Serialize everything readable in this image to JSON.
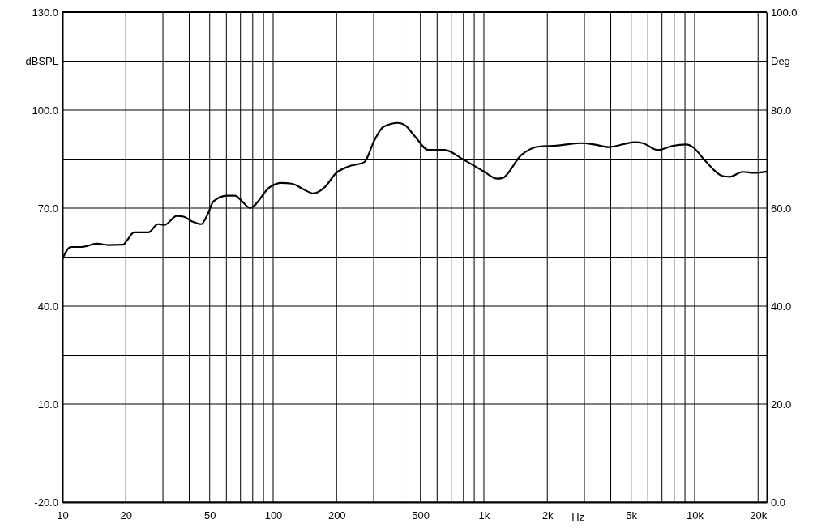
{
  "chart_data": {
    "type": "line",
    "xlabel": "Hz",
    "ylabel": "dBSPL",
    "y2label": "Deg",
    "log": "x",
    "grid": true,
    "x": [
      10,
      10.96,
      12.3,
      14.6,
      16.5,
      19.4,
      20.3,
      21.9,
      25.6,
      28.4,
      30.6,
      34.9,
      37.6,
      41.1,
      45.6,
      49.1,
      52.1,
      60.4,
      65.9,
      71.2,
      77.6,
      96.8,
      108.9,
      122.6,
      138,
      155.6,
      174.9,
      199.6,
      227,
      271,
      302,
      334,
      392,
      424,
      470,
      546,
      650,
      797,
      1000,
      1156,
      1225,
      1503,
      1846,
      2198,
      2876,
      3332,
      3915,
      5195,
      5678,
      6686,
      7877,
      9114,
      9806,
      11220,
      13610,
      14650,
      16950,
      19120,
      22000
    ],
    "series": [
      {
        "color": "#000000",
        "values": [
          54.4,
          58.1,
          58.1,
          59.1,
          58.7,
          58.8,
          60.2,
          62.6,
          62.6,
          65.1,
          64.9,
          67.6,
          67.4,
          66.0,
          65.1,
          68.4,
          72.1,
          73.8,
          73.8,
          72.1,
          70.1,
          76.5,
          77.7,
          77.5,
          75.9,
          74.5,
          76.3,
          80.8,
          82.7,
          84.1,
          90.7,
          94.9,
          96.1,
          95.3,
          92.0,
          87.8,
          87.8,
          84.9,
          81.2,
          79.0,
          79.2,
          86.2,
          88.9,
          89.1,
          89.9,
          89.5,
          88.7,
          90.2,
          89.9,
          87.8,
          89.1,
          89.5,
          88.7,
          84.5,
          79.8,
          79.6,
          81.1,
          80.8,
          81.2
        ]
      }
    ],
    "xlim": [
      10,
      22000
    ],
    "xticks": [
      {
        "value": 10,
        "label": "10"
      },
      {
        "value": 20,
        "label": "20"
      },
      {
        "value": 30,
        "label": null
      },
      {
        "value": 40,
        "label": null
      },
      {
        "value": 50,
        "label": "50"
      },
      {
        "value": 60,
        "label": null
      },
      {
        "value": 70,
        "label": null
      },
      {
        "value": 80,
        "label": null
      },
      {
        "value": 90,
        "label": null
      },
      {
        "value": 100,
        "label": "100"
      },
      {
        "value": 200,
        "label": "200"
      },
      {
        "value": 300,
        "label": null
      },
      {
        "value": 400,
        "label": null
      },
      {
        "value": 500,
        "label": "500"
      },
      {
        "value": 600,
        "label": null
      },
      {
        "value": 700,
        "label": null
      },
      {
        "value": 800,
        "label": null
      },
      {
        "value": 900,
        "label": null
      },
      {
        "value": 1000,
        "label": "1k"
      },
      {
        "value": 2000,
        "label": "2k"
      },
      {
        "value": 3000,
        "label": null
      },
      {
        "value": 4000,
        "label": null
      },
      {
        "value": 5000,
        "label": "5k"
      },
      {
        "value": 6000,
        "label": null
      },
      {
        "value": 7000,
        "label": null
      },
      {
        "value": 8000,
        "label": null
      },
      {
        "value": 9000,
        "label": null
      },
      {
        "value": 10000,
        "label": "10k"
      },
      {
        "value": 20000,
        "label": "20k"
      }
    ],
    "ylim": [
      -20,
      130
    ],
    "yticks": [
      {
        "value": -20,
        "label": "-20.0"
      },
      {
        "value": -5,
        "label": null
      },
      {
        "value": 10,
        "label": "10.0"
      },
      {
        "value": 25,
        "label": null
      },
      {
        "value": 40,
        "label": "40.0"
      },
      {
        "value": 55,
        "label": null
      },
      {
        "value": 70,
        "label": "70.0"
      },
      {
        "value": 85,
        "label": null
      },
      {
        "value": 100,
        "label": "100.0"
      },
      {
        "value": 115,
        "label": null
      },
      {
        "value": 130,
        "label": "130.0"
      }
    ],
    "y2lim": [
      0,
      100
    ],
    "y2ticks": [
      {
        "value": 0,
        "label": "0.0"
      },
      {
        "value": 20,
        "label": "20.0"
      },
      {
        "value": 40,
        "label": "40.0"
      },
      {
        "value": 60,
        "label": "60.0"
      },
      {
        "value": 80,
        "label": "80.0"
      },
      {
        "value": 100,
        "label": "100.0"
      }
    ]
  }
}
